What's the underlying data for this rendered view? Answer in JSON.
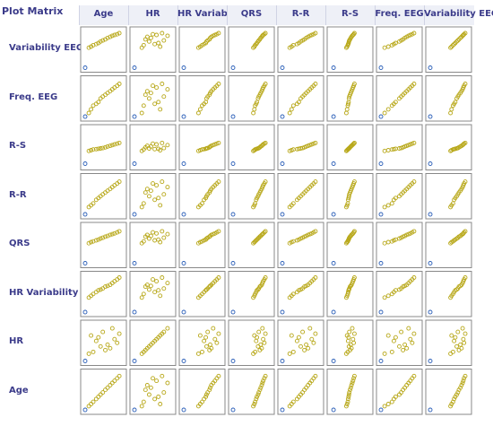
{
  "title": "Plot Matrix",
  "columns": [
    "Age",
    "HR",
    "HR Variability",
    "QRS",
    "R-R",
    "R-S",
    "Freq. EEG",
    "Variability EEG"
  ],
  "rows": [
    "Variability EEG",
    "Freq. EEG",
    "R-S",
    "R-R",
    "QRS",
    "HR Variability",
    "HR",
    "Age"
  ],
  "colors": {
    "outer_point": "#2b5fb8",
    "inner_point": "#b8a81a",
    "frame": "#888888",
    "label": "#3b3b8a",
    "header_bg": "#eef0f7"
  },
  "chart_data": {
    "type": "scatter-matrix",
    "variables": [
      "Age",
      "HR",
      "HR Variability",
      "QRS",
      "R-R",
      "R-S",
      "Freq. EEG",
      "Variability EEG"
    ],
    "n_points": 15,
    "axis_range": [
      0,
      1
    ],
    "points": {
      "Age": [
        0.0,
        0.1,
        0.16,
        0.22,
        0.3,
        0.36,
        0.42,
        0.48,
        0.55,
        0.61,
        0.68,
        0.74,
        0.8,
        0.87,
        0.93
      ],
      "HR": [
        0.0,
        0.2,
        0.7,
        0.25,
        0.55,
        0.65,
        0.4,
        0.8,
        0.3,
        0.45,
        0.35,
        0.9,
        0.6,
        0.5,
        0.75
      ],
      "HR Variability": [
        0.0,
        0.4,
        0.45,
        0.5,
        0.55,
        0.6,
        0.62,
        0.65,
        0.7,
        0.72,
        0.75,
        0.8,
        0.85,
        0.9,
        0.95
      ],
      "QRS": [
        0.0,
        0.55,
        0.58,
        0.6,
        0.63,
        0.65,
        0.68,
        0.7,
        0.73,
        0.75,
        0.78,
        0.8,
        0.82,
        0.85,
        0.88
      ],
      "R-R": [
        0.0,
        0.2,
        0.25,
        0.3,
        0.4,
        0.45,
        0.5,
        0.55,
        0.6,
        0.65,
        0.7,
        0.75,
        0.8,
        0.85,
        0.9
      ],
      "R-S": [
        0.05,
        0.4,
        0.42,
        0.44,
        0.45,
        0.46,
        0.47,
        0.48,
        0.5,
        0.52,
        0.54,
        0.56,
        0.58,
        0.6,
        0.62
      ],
      "Freq. EEG": [
        0.0,
        0.1,
        0.2,
        0.3,
        0.35,
        0.4,
        0.5,
        0.55,
        0.6,
        0.65,
        0.7,
        0.75,
        0.8,
        0.85,
        0.9
      ],
      "Variability EEG": [
        0.0,
        0.55,
        0.58,
        0.62,
        0.65,
        0.68,
        0.72,
        0.75,
        0.78,
        0.82,
        0.85,
        0.88,
        0.9,
        0.92,
        0.95
      ]
    }
  }
}
